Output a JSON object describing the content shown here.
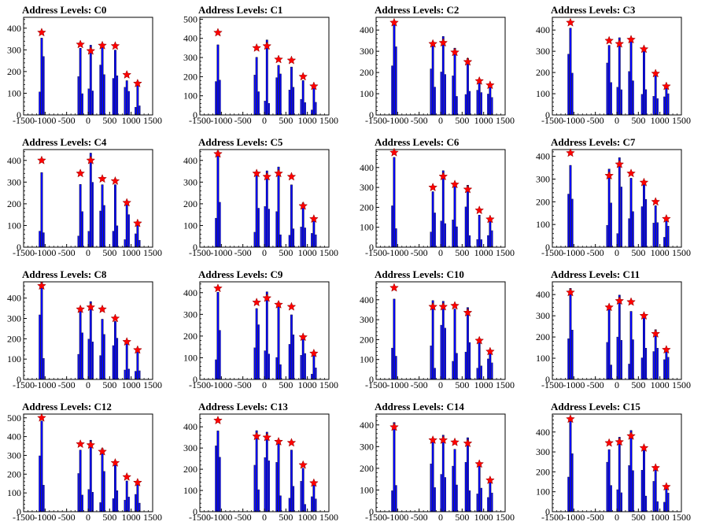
{
  "chart_data": [
    {
      "type": "bar",
      "title": "Address Levels: C0",
      "xlim": [
        -1500,
        1500
      ],
      "ylim": [
        0,
        450
      ],
      "yticks": [
        0,
        100,
        200,
        300,
        400
      ],
      "peaks": [
        {
          "x": -1080,
          "y": 380
        },
        {
          "x": -180,
          "y": 325
        },
        {
          "x": 60,
          "y": 295
        },
        {
          "x": 330,
          "y": 320
        },
        {
          "x": 630,
          "y": 318
        },
        {
          "x": 900,
          "y": 185
        },
        {
          "x": 1150,
          "y": 145
        }
      ]
    },
    {
      "type": "bar",
      "title": "Address Levels: C1",
      "xlim": [
        -1500,
        1500
      ],
      "ylim": [
        0,
        510
      ],
      "yticks": [
        0,
        100,
        200,
        300,
        400,
        500
      ],
      "peaks": [
        {
          "x": -1080,
          "y": 430
        },
        {
          "x": -180,
          "y": 350
        },
        {
          "x": 60,
          "y": 360
        },
        {
          "x": 330,
          "y": 290
        },
        {
          "x": 630,
          "y": 285
        },
        {
          "x": 900,
          "y": 200
        },
        {
          "x": 1150,
          "y": 150
        }
      ]
    },
    {
      "type": "bar",
      "title": "Address Levels: C2",
      "xlim": [
        -1500,
        1500
      ],
      "ylim": [
        0,
        460
      ],
      "yticks": [
        0,
        100,
        200,
        300,
        400
      ],
      "peaks": [
        {
          "x": -1080,
          "y": 435
        },
        {
          "x": -180,
          "y": 335
        },
        {
          "x": 60,
          "y": 340
        },
        {
          "x": 330,
          "y": 295
        },
        {
          "x": 630,
          "y": 250
        },
        {
          "x": 900,
          "y": 160
        },
        {
          "x": 1150,
          "y": 140
        }
      ]
    },
    {
      "type": "bar",
      "title": "Address Levels: C3",
      "xlim": [
        -1500,
        1500
      ],
      "ylim": [
        0,
        460
      ],
      "yticks": [
        0,
        100,
        200,
        300,
        400
      ],
      "peaks": [
        {
          "x": -1080,
          "y": 435
        },
        {
          "x": -180,
          "y": 350
        },
        {
          "x": 60,
          "y": 335
        },
        {
          "x": 330,
          "y": 355
        },
        {
          "x": 630,
          "y": 310
        },
        {
          "x": 900,
          "y": 195
        },
        {
          "x": 1150,
          "y": 135
        }
      ]
    },
    {
      "type": "bar",
      "title": "Address Levels: C4",
      "xlim": [
        -1500,
        1500
      ],
      "ylim": [
        0,
        450
      ],
      "yticks": [
        0,
        100,
        200,
        300,
        400
      ],
      "peaks": [
        {
          "x": -1080,
          "y": 400
        },
        {
          "x": -180,
          "y": 340
        },
        {
          "x": 60,
          "y": 400
        },
        {
          "x": 330,
          "y": 315
        },
        {
          "x": 630,
          "y": 305
        },
        {
          "x": 900,
          "y": 205
        },
        {
          "x": 1150,
          "y": 110
        }
      ]
    },
    {
      "type": "bar",
      "title": "Address Levels: C5",
      "xlim": [
        -1500,
        1500
      ],
      "ylim": [
        0,
        450
      ],
      "yticks": [
        0,
        100,
        200,
        300,
        400
      ],
      "peaks": [
        {
          "x": -1080,
          "y": 430
        },
        {
          "x": -180,
          "y": 340
        },
        {
          "x": 60,
          "y": 325
        },
        {
          "x": 330,
          "y": 340
        },
        {
          "x": 630,
          "y": 325
        },
        {
          "x": 900,
          "y": 190
        },
        {
          "x": 1150,
          "y": 130
        }
      ]
    },
    {
      "type": "bar",
      "title": "Address Levels: C6",
      "xlim": [
        -1500,
        1500
      ],
      "ylim": [
        0,
        490
      ],
      "yticks": [
        0,
        100,
        200,
        300,
        400
      ],
      "peaks": [
        {
          "x": -1080,
          "y": 475
        },
        {
          "x": -180,
          "y": 300
        },
        {
          "x": 60,
          "y": 355
        },
        {
          "x": 330,
          "y": 315
        },
        {
          "x": 630,
          "y": 290
        },
        {
          "x": 900,
          "y": 185
        },
        {
          "x": 1150,
          "y": 140
        }
      ]
    },
    {
      "type": "bar",
      "title": "Address Levels: C7",
      "xlim": [
        -1500,
        1500
      ],
      "ylim": [
        0,
        430
      ],
      "yticks": [
        0,
        100,
        200,
        300,
        400
      ],
      "peaks": [
        {
          "x": -1080,
          "y": 415
        },
        {
          "x": -180,
          "y": 315
        },
        {
          "x": 60,
          "y": 365
        },
        {
          "x": 330,
          "y": 325
        },
        {
          "x": 630,
          "y": 285
        },
        {
          "x": 900,
          "y": 200
        },
        {
          "x": 1150,
          "y": 125
        }
      ]
    },
    {
      "type": "bar",
      "title": "Address Levels: C8",
      "xlim": [
        -1500,
        1500
      ],
      "ylim": [
        0,
        480
      ],
      "yticks": [
        0,
        100,
        200,
        300,
        400
      ],
      "peaks": [
        {
          "x": -1080,
          "y": 460
        },
        {
          "x": -180,
          "y": 345
        },
        {
          "x": 60,
          "y": 355
        },
        {
          "x": 330,
          "y": 345
        },
        {
          "x": 630,
          "y": 300
        },
        {
          "x": 900,
          "y": 185
        },
        {
          "x": 1150,
          "y": 145
        }
      ]
    },
    {
      "type": "bar",
      "title": "Address Levels: C9",
      "xlim": [
        -1500,
        1500
      ],
      "ylim": [
        0,
        450
      ],
      "yticks": [
        0,
        100,
        200,
        300,
        400
      ],
      "peaks": [
        {
          "x": -1080,
          "y": 420
        },
        {
          "x": -180,
          "y": 355
        },
        {
          "x": 60,
          "y": 375
        },
        {
          "x": 330,
          "y": 345
        },
        {
          "x": 630,
          "y": 335
        },
        {
          "x": 900,
          "y": 195
        },
        {
          "x": 1150,
          "y": 120
        }
      ]
    },
    {
      "type": "bar",
      "title": "Address Levels: C10",
      "xlim": [
        -1500,
        1500
      ],
      "ylim": [
        0,
        490
      ],
      "yticks": [
        0,
        100,
        200,
        300,
        400
      ],
      "peaks": [
        {
          "x": -1080,
          "y": 460
        },
        {
          "x": -180,
          "y": 365
        },
        {
          "x": 60,
          "y": 365
        },
        {
          "x": 330,
          "y": 370
        },
        {
          "x": 630,
          "y": 335
        },
        {
          "x": 900,
          "y": 195
        },
        {
          "x": 1150,
          "y": 140
        }
      ]
    },
    {
      "type": "bar",
      "title": "Address Levels: C11",
      "xlim": [
        -1500,
        1500
      ],
      "ylim": [
        0,
        460
      ],
      "yticks": [
        0,
        100,
        200,
        300,
        400
      ],
      "peaks": [
        {
          "x": -1080,
          "y": 410
        },
        {
          "x": -180,
          "y": 340
        },
        {
          "x": 60,
          "y": 370
        },
        {
          "x": 330,
          "y": 365
        },
        {
          "x": 630,
          "y": 300
        },
        {
          "x": 900,
          "y": 215
        },
        {
          "x": 1150,
          "y": 140
        }
      ]
    },
    {
      "type": "bar",
      "title": "Address Levels: C12",
      "xlim": [
        -1500,
        1500
      ],
      "ylim": [
        0,
        520
      ],
      "yticks": [
        0,
        100,
        200,
        300,
        400,
        500
      ],
      "peaks": [
        {
          "x": -1080,
          "y": 500
        },
        {
          "x": -180,
          "y": 360
        },
        {
          "x": 60,
          "y": 355
        },
        {
          "x": 330,
          "y": 320
        },
        {
          "x": 630,
          "y": 260
        },
        {
          "x": 900,
          "y": 185
        },
        {
          "x": 1150,
          "y": 155
        }
      ]
    },
    {
      "type": "bar",
      "title": "Address Levels: C13",
      "xlim": [
        -1500,
        1500
      ],
      "ylim": [
        0,
        460
      ],
      "yticks": [
        0,
        100,
        200,
        300,
        400
      ],
      "peaks": [
        {
          "x": -1080,
          "y": 430
        },
        {
          "x": -180,
          "y": 355
        },
        {
          "x": 60,
          "y": 350
        },
        {
          "x": 330,
          "y": 330
        },
        {
          "x": 630,
          "y": 325
        },
        {
          "x": 900,
          "y": 220
        },
        {
          "x": 1150,
          "y": 135
        }
      ]
    },
    {
      "type": "bar",
      "title": "Address Levels: C14",
      "xlim": [
        -1500,
        1500
      ],
      "ylim": [
        0,
        450
      ],
      "yticks": [
        0,
        100,
        200,
        300,
        400
      ],
      "peaks": [
        {
          "x": -1080,
          "y": 390
        },
        {
          "x": -180,
          "y": 330
        },
        {
          "x": 60,
          "y": 330
        },
        {
          "x": 330,
          "y": 320
        },
        {
          "x": 630,
          "y": 315
        },
        {
          "x": 900,
          "y": 220
        },
        {
          "x": 1150,
          "y": 145
        }
      ]
    },
    {
      "type": "bar",
      "title": "Address Levels: C15",
      "xlim": [
        -1500,
        1500
      ],
      "ylim": [
        0,
        490
      ],
      "yticks": [
        0,
        100,
        200,
        300,
        400
      ],
      "peaks": [
        {
          "x": -1080,
          "y": 465
        },
        {
          "x": -180,
          "y": 345
        },
        {
          "x": 60,
          "y": 350
        },
        {
          "x": 330,
          "y": 380
        },
        {
          "x": 630,
          "y": 320
        },
        {
          "x": 900,
          "y": 220
        },
        {
          "x": 1150,
          "y": 125
        }
      ]
    }
  ],
  "xticks": [
    -1500,
    -1000,
    -500,
    0,
    500,
    1000,
    1500
  ],
  "colors": {
    "histogram": "#0000ff",
    "histogram_edge": "#000000",
    "marker": "#ff0000",
    "marker_edge": "#8b0000",
    "axes": "#000000"
  }
}
